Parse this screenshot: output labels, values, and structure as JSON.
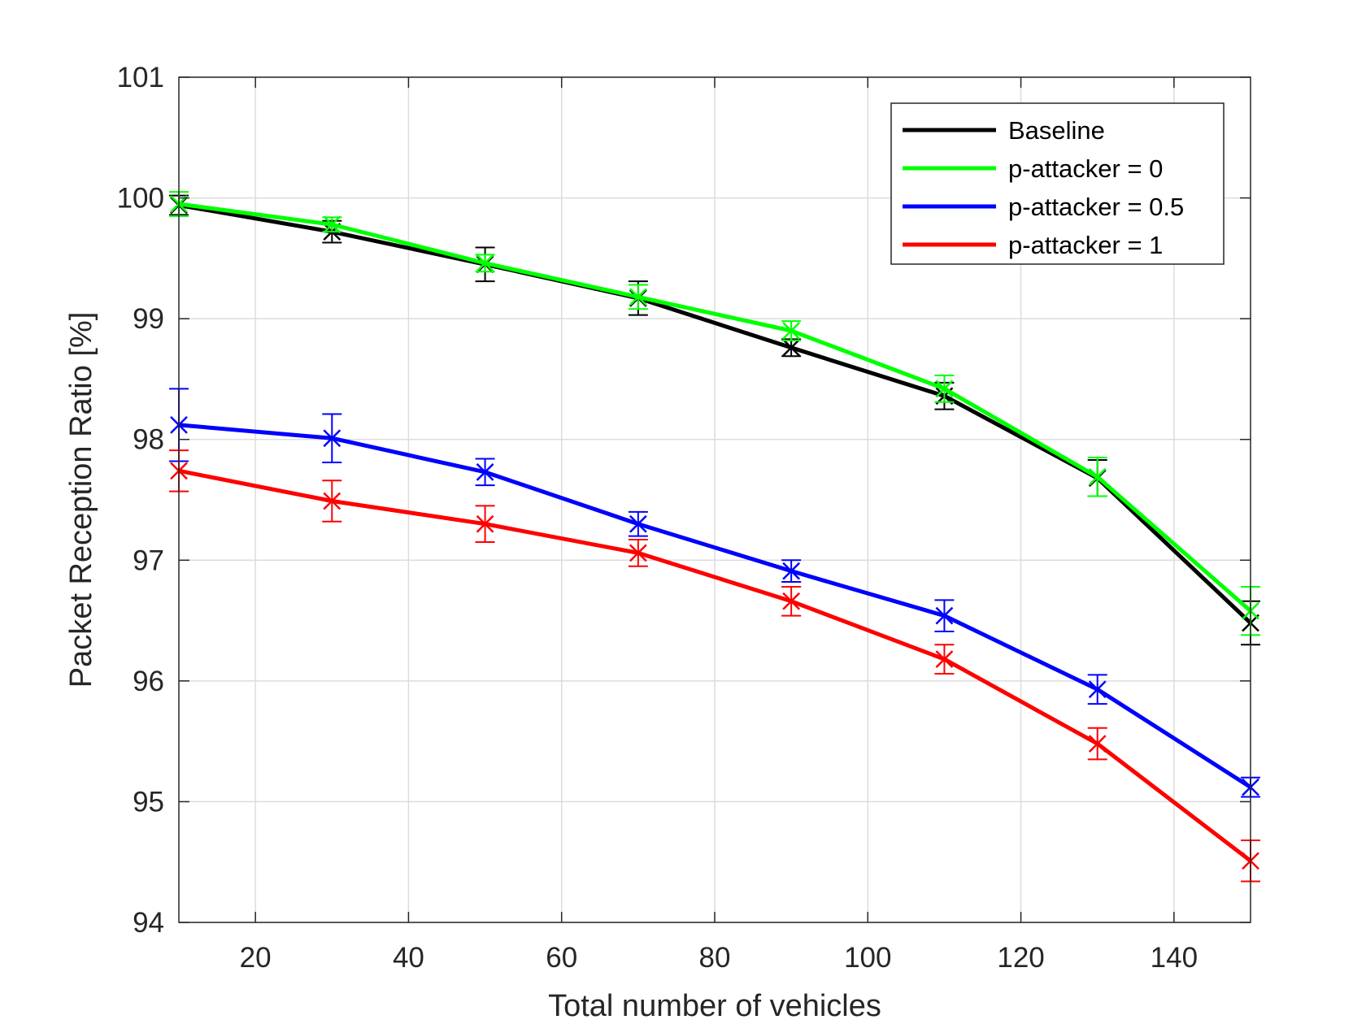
{
  "chart_data": {
    "type": "line",
    "xlabel": "Total number of vehicles",
    "ylabel": "Packet Reception Ratio [%]",
    "xlim": [
      10,
      150
    ],
    "ylim": [
      94,
      101
    ],
    "xticks": [
      20,
      40,
      60,
      80,
      100,
      120,
      140
    ],
    "yticks": [
      94,
      95,
      96,
      97,
      98,
      99,
      100,
      101
    ],
    "grid": true,
    "legend_position": "top-right",
    "x": [
      10,
      30,
      50,
      70,
      90,
      110,
      130,
      150
    ],
    "series": [
      {
        "name": "Baseline",
        "color": "#000000",
        "values": [
          99.94,
          99.72,
          99.45,
          99.17,
          98.76,
          98.36,
          97.68,
          96.48
        ],
        "err": [
          0.08,
          0.09,
          0.14,
          0.14,
          0.07,
          0.11,
          0.15,
          0.18
        ]
      },
      {
        "name": "p-attacker = 0",
        "color": "#00ff00",
        "values": [
          99.95,
          99.78,
          99.46,
          99.18,
          98.9,
          98.42,
          97.69,
          96.58
        ],
        "err": [
          0.1,
          0.06,
          0.07,
          0.1,
          0.08,
          0.11,
          0.16,
          0.2
        ]
      },
      {
        "name": "p-attacker = 0.5",
        "color": "#0000ff",
        "values": [
          98.12,
          98.01,
          97.73,
          97.3,
          96.91,
          96.54,
          95.93,
          95.12
        ],
        "err": [
          0.3,
          0.2,
          0.11,
          0.1,
          0.09,
          0.13,
          0.12,
          0.08
        ]
      },
      {
        "name": "p-attacker = 1",
        "color": "#ff0000",
        "values": [
          97.74,
          97.49,
          97.3,
          97.06,
          96.66,
          96.18,
          95.48,
          94.51
        ],
        "err": [
          0.17,
          0.17,
          0.15,
          0.11,
          0.12,
          0.12,
          0.13,
          0.17
        ]
      }
    ]
  }
}
